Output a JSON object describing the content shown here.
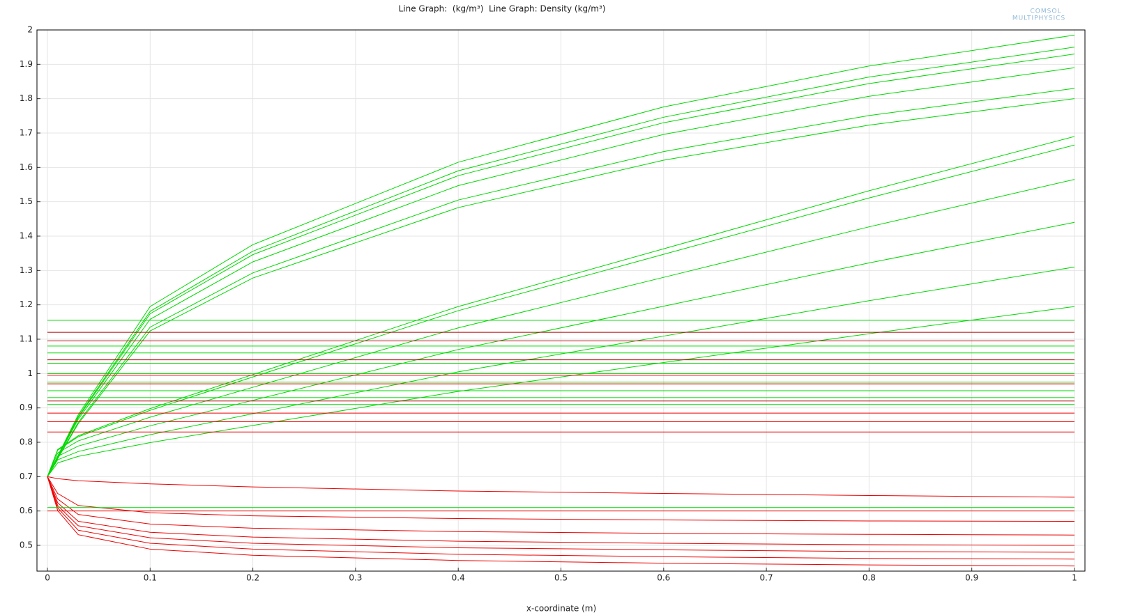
{
  "chart_data": {
    "type": "line",
    "title": "Line Graph:  (kg/m³)  Line Graph: Density (kg/m³)",
    "x_label": "x-coordinate (m)",
    "annotations": [
      "COMSOL",
      "MULTIPHYSICS"
    ],
    "x": [
      0,
      0.01,
      0.03,
      0.1,
      0.2,
      0.4,
      0.6,
      0.8,
      1
    ],
    "xlim": [
      -0.0102,
      1.0102
    ],
    "ylim": [
      0.425,
      2
    ],
    "xticks": [
      0,
      0.1,
      0.2,
      0.3,
      0.4,
      0.5,
      0.6,
      0.7,
      0.8,
      0.9,
      1
    ],
    "yticks": [
      0.5,
      0.6,
      0.7,
      0.8,
      0.9,
      1,
      1.1,
      1.2,
      1.3,
      1.4,
      1.5,
      1.6,
      1.7,
      1.8,
      1.9,
      2
    ],
    "grid": true,
    "series": [
      {
        "color": "#00d800",
        "values": [
          0.7,
          0.76,
          0.88,
          1.195,
          1.375,
          1.615,
          1.776,
          1.895,
          1.985
        ]
      },
      {
        "color": "#00d800",
        "values": [
          0.7,
          0.759,
          0.875,
          1.181,
          1.356,
          1.59,
          1.746,
          1.863,
          1.95
        ]
      },
      {
        "color": "#00d800",
        "values": [
          0.7,
          0.758,
          0.872,
          1.174,
          1.346,
          1.576,
          1.73,
          1.844,
          1.93
        ]
      },
      {
        "color": "#00d800",
        "values": [
          0.7,
          0.756,
          0.867,
          1.158,
          1.325,
          1.547,
          1.696,
          1.807,
          1.89
        ]
      },
      {
        "color": "#00d800",
        "values": [
          0.7,
          0.753,
          0.858,
          1.135,
          1.293,
          1.505,
          1.646,
          1.751,
          1.83
        ]
      },
      {
        "color": "#00d800",
        "values": [
          0.7,
          0.752,
          0.854,
          1.124,
          1.278,
          1.483,
          1.621,
          1.723,
          1.8
        ]
      },
      {
        "color": "#00d800",
        "values": [
          0.7,
          0.779,
          0.819,
          0.898,
          0.997,
          1.195,
          1.363,
          1.532,
          1.69
        ]
      },
      {
        "color": "#00d800",
        "values": [
          0.7,
          0.777,
          0.816,
          0.893,
          0.99,
          1.183,
          1.347,
          1.511,
          1.665
        ]
      },
      {
        "color": "#00d800",
        "values": [
          0.7,
          0.769,
          0.804,
          0.873,
          0.96,
          1.133,
          1.28,
          1.427,
          1.565
        ]
      },
      {
        "color": "#00d800",
        "values": [
          0.7,
          0.759,
          0.789,
          0.848,
          0.922,
          1.07,
          1.196,
          1.322,
          1.44
        ]
      },
      {
        "color": "#00d800",
        "values": [
          0.7,
          0.749,
          0.773,
          0.822,
          0.883,
          1.005,
          1.109,
          1.212,
          1.31
        ]
      },
      {
        "color": "#00d800",
        "values": [
          0.7,
          0.74,
          0.759,
          0.799,
          0.849,
          0.948,
          1.032,
          1.116,
          1.195
        ]
      },
      {
        "color": "#ee0000",
        "values": [
          0.7,
          0.601,
          0.531,
          0.489,
          0.471,
          0.456,
          0.448,
          0.443,
          0.44
        ]
      },
      {
        "color": "#ee0000",
        "values": [
          0.7,
          0.609,
          0.544,
          0.506,
          0.489,
          0.474,
          0.467,
          0.462,
          0.46
        ]
      },
      {
        "color": "#ee0000",
        "values": [
          0.7,
          0.616,
          0.557,
          0.522,
          0.506,
          0.493,
          0.487,
          0.482,
          0.48
        ]
      },
      {
        "color": "#ee0000",
        "values": [
          0.7,
          0.624,
          0.57,
          0.538,
          0.524,
          0.512,
          0.506,
          0.502,
          0.5
        ]
      },
      {
        "color": "#ee0000",
        "values": [
          0.7,
          0.635,
          0.59,
          0.562,
          0.55,
          0.54,
          0.535,
          0.532,
          0.53
        ]
      },
      {
        "color": "#ee0000",
        "values": [
          0.7,
          0.651,
          0.616,
          0.595,
          0.586,
          0.578,
          0.574,
          0.571,
          0.57
        ]
      },
      {
        "color": "#ee0000",
        "values": [
          0.7,
          0.694,
          0.688,
          0.679,
          0.67,
          0.658,
          0.651,
          0.645,
          0.64
        ]
      },
      {
        "color": "#00d800",
        "values": [
          1.155,
          1.155,
          1.155,
          1.155,
          1.155,
          1.155,
          1.155,
          1.155,
          1.155
        ]
      },
      {
        "color": "#00d800",
        "values": [
          1.08,
          1.08,
          1.08,
          1.08,
          1.08,
          1.08,
          1.08,
          1.08,
          1.08
        ]
      },
      {
        "color": "#00d800",
        "values": [
          1.06,
          1.06,
          1.06,
          1.06,
          1.06,
          1.06,
          1.06,
          1.06,
          1.06
        ]
      },
      {
        "color": "#00d800",
        "values": [
          1.03,
          1.03,
          1.03,
          1.03,
          1.03,
          1.03,
          1.03,
          1.03,
          1.03
        ]
      },
      {
        "color": "#00d800",
        "values": [
          1.0,
          1.0,
          1.0,
          1.0,
          1.0,
          1.0,
          1.0,
          1.0,
          1.0
        ]
      },
      {
        "color": "#00d800",
        "values": [
          0.975,
          0.975,
          0.975,
          0.975,
          0.975,
          0.975,
          0.975,
          0.975,
          0.975
        ]
      },
      {
        "color": "#00d800",
        "values": [
          0.95,
          0.95,
          0.95,
          0.95,
          0.95,
          0.95,
          0.95,
          0.95,
          0.95
        ]
      },
      {
        "color": "#00d800",
        "values": [
          0.93,
          0.93,
          0.93,
          0.93,
          0.93,
          0.93,
          0.93,
          0.93,
          0.93
        ]
      },
      {
        "color": "#00d800",
        "values": [
          0.91,
          0.91,
          0.91,
          0.91,
          0.91,
          0.91,
          0.91,
          0.91,
          0.91
        ]
      },
      {
        "color": "#00d800",
        "values": [
          0.61,
          0.61,
          0.61,
          0.61,
          0.61,
          0.61,
          0.61,
          0.61,
          0.61
        ]
      },
      {
        "color": "#b00000",
        "values": [
          1.12,
          1.12,
          1.12,
          1.12,
          1.12,
          1.12,
          1.12,
          1.12,
          1.12
        ]
      },
      {
        "color": "#b00000",
        "values": [
          1.095,
          1.095,
          1.095,
          1.095,
          1.095,
          1.095,
          1.095,
          1.095,
          1.095
        ]
      },
      {
        "color": "#b00000",
        "values": [
          1.04,
          1.04,
          1.04,
          1.04,
          1.04,
          1.04,
          1.04,
          1.04,
          1.04
        ]
      },
      {
        "color": "#ee0000",
        "values": [
          0.995,
          0.995,
          0.995,
          0.995,
          0.995,
          0.995,
          0.995,
          0.995,
          0.995
        ]
      },
      {
        "color": "#ee0000",
        "values": [
          0.97,
          0.97,
          0.97,
          0.97,
          0.97,
          0.97,
          0.97,
          0.97,
          0.97
        ]
      },
      {
        "color": "#b00000",
        "values": [
          0.92,
          0.92,
          0.92,
          0.92,
          0.92,
          0.92,
          0.92,
          0.92,
          0.92
        ]
      },
      {
        "color": "#ee0000",
        "values": [
          0.885,
          0.885,
          0.885,
          0.885,
          0.885,
          0.885,
          0.885,
          0.885,
          0.885
        ]
      },
      {
        "color": "#ee0000",
        "values": [
          0.86,
          0.86,
          0.86,
          0.86,
          0.86,
          0.86,
          0.86,
          0.86,
          0.86
        ]
      },
      {
        "color": "#ee0000",
        "values": [
          0.83,
          0.83,
          0.83,
          0.83,
          0.83,
          0.83,
          0.83,
          0.83,
          0.83
        ]
      },
      {
        "color": "#ee0000",
        "values": [
          0.6,
          0.6,
          0.6,
          0.6,
          0.6,
          0.6,
          0.6,
          0.6,
          0.6
        ]
      }
    ]
  }
}
